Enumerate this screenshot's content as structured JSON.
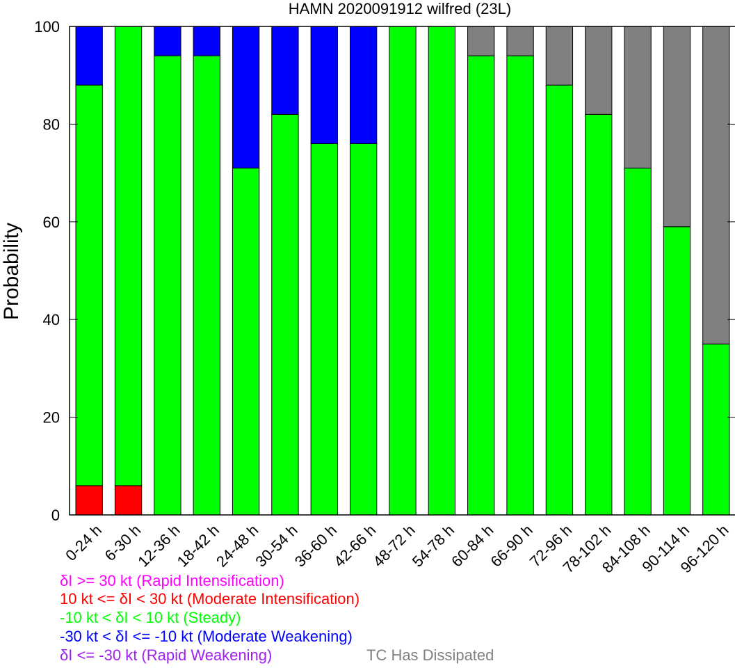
{
  "chart_data": {
    "type": "bar",
    "stacked": true,
    "title": "HAMN 2020091912 wilfred (23L)",
    "ylabel": "Probability",
    "xlabel": "",
    "ylim": [
      0,
      100
    ],
    "yticks": [
      0,
      20,
      40,
      60,
      80,
      100
    ],
    "categories": [
      "0-24 h",
      "6-30 h",
      "12-36 h",
      "18-42 h",
      "24-48 h",
      "30-54 h",
      "36-60 h",
      "42-66 h",
      "48-72 h",
      "54-78 h",
      "60-84 h",
      "66-90 h",
      "72-96 h",
      "78-102 h",
      "84-108 h",
      "90-114 h",
      "96-120 h"
    ],
    "series": [
      {
        "name": "δI >= 30 kt (Rapid Intensification)",
        "color": "#ff00ff",
        "values": [
          0,
          0,
          0,
          0,
          0,
          0,
          0,
          0,
          0,
          0,
          0,
          0,
          0,
          0,
          0,
          0,
          0
        ]
      },
      {
        "name": "10 kt <= δI < 30 kt (Moderate Intensification)",
        "color": "#ff0000",
        "values": [
          6,
          6,
          0,
          0,
          0,
          0,
          0,
          0,
          0,
          0,
          0,
          0,
          0,
          0,
          0,
          0,
          0
        ]
      },
      {
        "name": "-10 kt < δI < 10 kt (Steady)",
        "color": "#00ff00",
        "values": [
          82,
          94,
          94,
          94,
          71,
          82,
          76,
          76,
          100,
          100,
          94,
          94,
          88,
          82,
          71,
          59,
          35
        ]
      },
      {
        "name": "-30 kt < δI <= -10 kt (Moderate Weakening)",
        "color": "#0000ff",
        "values": [
          12,
          0,
          6,
          6,
          29,
          18,
          24,
          24,
          0,
          0,
          0,
          0,
          0,
          0,
          0,
          0,
          0
        ]
      },
      {
        "name": "δI <= -30 kt (Rapid Weakening)",
        "color": "#a020f0",
        "values": [
          0,
          0,
          0,
          0,
          0,
          0,
          0,
          0,
          0,
          0,
          0,
          0,
          0,
          0,
          0,
          0,
          0
        ]
      },
      {
        "name": "TC Has Dissipated",
        "color": "#808080",
        "values": [
          0,
          0,
          0,
          0,
          0,
          0,
          0,
          0,
          0,
          0,
          6,
          6,
          12,
          18,
          29,
          41,
          65
        ]
      }
    ],
    "legend_placement": "bottom-left"
  }
}
